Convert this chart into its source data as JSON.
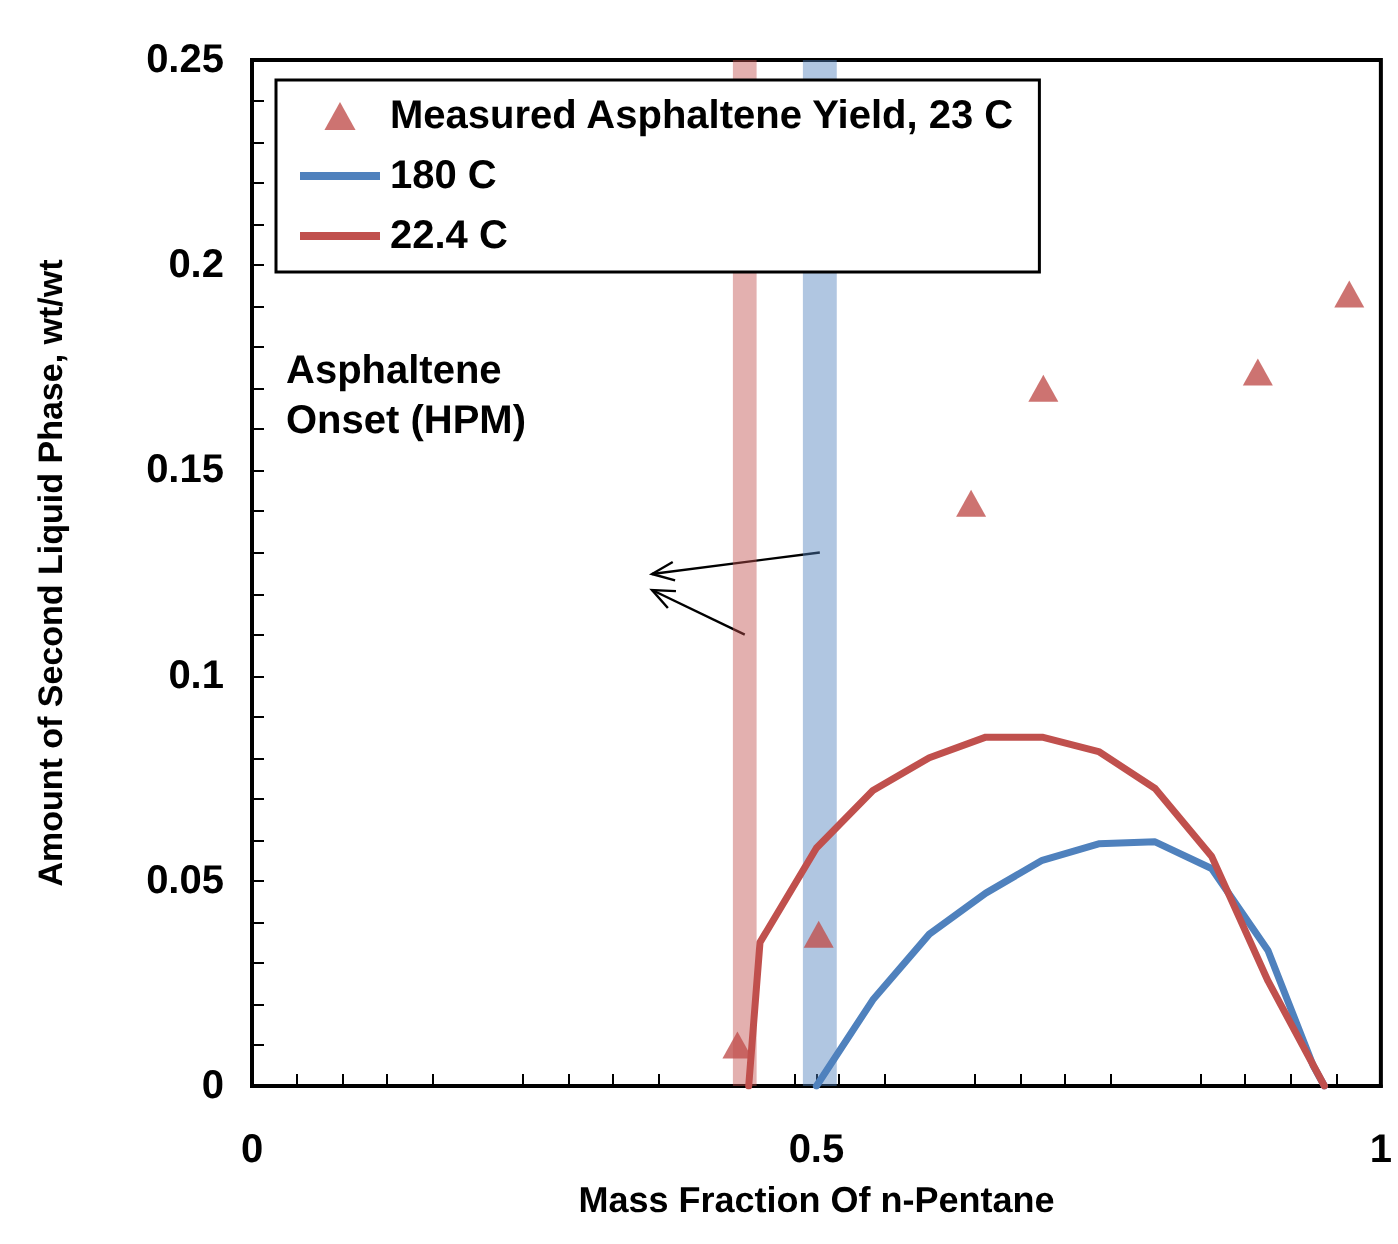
{
  "chart_data": {
    "type": "line",
    "xlabel": "Mass Fraction Of n-Pentane",
    "ylabel": "Amount of Second Liquid Phase, wt/wt",
    "xlim": [
      0,
      1
    ],
    "xticks": [
      0,
      0.5,
      1
    ],
    "ylim": [
      0,
      0.25
    ],
    "yticks": [
      0,
      0.05,
      0.1,
      0.15,
      0.2,
      0.25
    ],
    "grid": false,
    "legend": "top left",
    "series": [
      {
        "name": "Measured Asphaltene Yield, 23 C",
        "type": "scatter",
        "marker": "triangle",
        "color": "#c0504d",
        "x": [
          0.43,
          0.502,
          0.637,
          0.701,
          0.891,
          0.972
        ],
        "values": [
          0.01,
          0.037,
          0.142,
          0.17,
          0.174,
          0.193
        ]
      },
      {
        "name": "180 C",
        "color": "#4f81bd",
        "marker": "none",
        "x": [
          0.5,
          0.55,
          0.6,
          0.65,
          0.7,
          0.75,
          0.8,
          0.85,
          0.9,
          0.94,
          0.95
        ],
        "values": [
          0,
          0.021,
          0.037,
          0.047,
          0.055,
          0.059,
          0.0595,
          0.053,
          0.033,
          0.005,
          0
        ]
      },
      {
        "name": "22.4 C",
        "color": "#c0504d",
        "marker": "none",
        "x": [
          0.44,
          0.45,
          0.5,
          0.55,
          0.6,
          0.65,
          0.7,
          0.75,
          0.8,
          0.85,
          0.9,
          0.95
        ],
        "values": [
          0,
          0.035,
          0.058,
          0.072,
          0.08,
          0.085,
          0.085,
          0.0815,
          0.0725,
          0.056,
          0.0256,
          0
        ]
      }
    ],
    "bands": [
      {
        "axis": "x",
        "from": 0.426,
        "to": 0.447,
        "color": "#c0504d"
      },
      {
        "axis": "x",
        "from": 0.488,
        "to": 0.518,
        "color": "#4f81bd"
      }
    ],
    "annotations": [
      "Asphaltene\nOnset (HPM)"
    ]
  }
}
